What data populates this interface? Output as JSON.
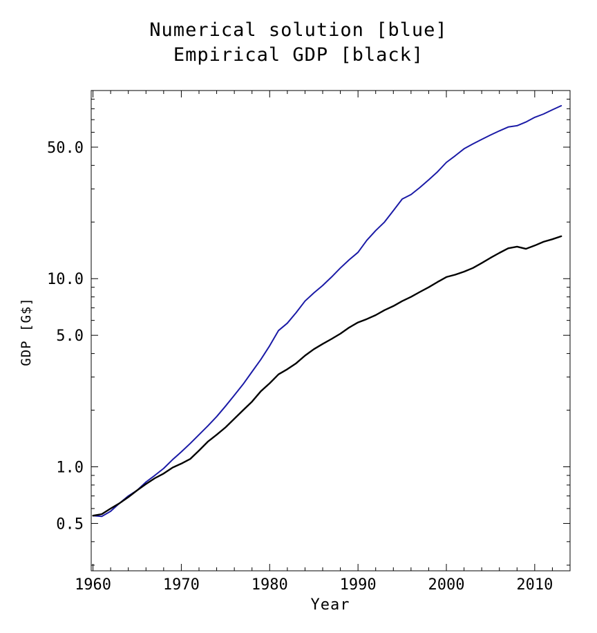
{
  "chart_data": {
    "type": "line",
    "title_lines": [
      "Numerical solution [blue]",
      "Empirical GDP [black]"
    ],
    "xlabel": "Year",
    "ylabel": "GDP [G$]",
    "xlim": [
      1959.8,
      2014.0
    ],
    "ylim": [
      0.28,
      100
    ],
    "y_scale": "log",
    "grid": false,
    "x_ticks": [
      1960,
      1970,
      1980,
      1990,
      2000,
      2010
    ],
    "x_tick_labels": [
      "1960",
      "1970",
      "1980",
      "1990",
      "2000",
      "2010"
    ],
    "y_ticks": [
      0.5,
      1.0,
      5.0,
      10.0,
      50.0
    ],
    "y_tick_labels": [
      "0.5",
      "1.0",
      "5.0",
      "10.0",
      "50.0"
    ],
    "colors": {
      "numerical": "#1a1aa6",
      "empirical": "#000000"
    },
    "series": [
      {
        "key": "numerical",
        "color": "#1a1aa6",
        "points": [
          [
            1960,
            0.55
          ],
          [
            1961,
            0.545
          ],
          [
            1962,
            0.58
          ],
          [
            1963,
            0.64
          ],
          [
            1964,
            0.7
          ],
          [
            1965,
            0.75
          ],
          [
            1966,
            0.83
          ],
          [
            1967,
            0.9
          ],
          [
            1968,
            0.98
          ],
          [
            1969,
            1.09
          ],
          [
            1970,
            1.2
          ],
          [
            1971,
            1.33
          ],
          [
            1972,
            1.48
          ],
          [
            1973,
            1.65
          ],
          [
            1974,
            1.85
          ],
          [
            1975,
            2.1
          ],
          [
            1976,
            2.4
          ],
          [
            1977,
            2.75
          ],
          [
            1978,
            3.2
          ],
          [
            1979,
            3.72
          ],
          [
            1980,
            4.4
          ],
          [
            1981,
            5.3
          ],
          [
            1982,
            5.8
          ],
          [
            1983,
            6.6
          ],
          [
            1984,
            7.6
          ],
          [
            1985,
            8.4
          ],
          [
            1986,
            9.2
          ],
          [
            1987,
            10.2
          ],
          [
            1988,
            11.4
          ],
          [
            1989,
            12.6
          ],
          [
            1990,
            13.8
          ],
          [
            1991,
            16.0
          ],
          [
            1992,
            18.0
          ],
          [
            1993,
            20.0
          ],
          [
            1994,
            23.0
          ],
          [
            1995,
            26.5
          ],
          [
            1996,
            28.0
          ],
          [
            1997,
            30.5
          ],
          [
            1998,
            33.5
          ],
          [
            1999,
            37.0
          ],
          [
            2000,
            41.5
          ],
          [
            2001,
            45.0
          ],
          [
            2002,
            49.0
          ],
          [
            2003,
            52.0
          ],
          [
            2004,
            55.0
          ],
          [
            2005,
            58.0
          ],
          [
            2006,
            61.0
          ],
          [
            2007,
            64.0
          ],
          [
            2008,
            65.0
          ],
          [
            2009,
            68.0
          ],
          [
            2010,
            72.0
          ],
          [
            2011,
            75.0
          ],
          [
            2012,
            79.0
          ],
          [
            2013,
            83.0
          ]
        ]
      },
      {
        "key": "empirical",
        "color": "#000000",
        "points": [
          [
            1960,
            0.55
          ],
          [
            1961,
            0.56
          ],
          [
            1962,
            0.6
          ],
          [
            1963,
            0.64
          ],
          [
            1964,
            0.69
          ],
          [
            1965,
            0.75
          ],
          [
            1966,
            0.81
          ],
          [
            1967,
            0.87
          ],
          [
            1968,
            0.92
          ],
          [
            1969,
            0.99
          ],
          [
            1970,
            1.04
          ],
          [
            1971,
            1.1
          ],
          [
            1972,
            1.22
          ],
          [
            1973,
            1.36
          ],
          [
            1974,
            1.48
          ],
          [
            1975,
            1.62
          ],
          [
            1976,
            1.8
          ],
          [
            1977,
            2.0
          ],
          [
            1978,
            2.22
          ],
          [
            1979,
            2.52
          ],
          [
            1980,
            2.78
          ],
          [
            1981,
            3.1
          ],
          [
            1982,
            3.3
          ],
          [
            1983,
            3.55
          ],
          [
            1984,
            3.9
          ],
          [
            1985,
            4.22
          ],
          [
            1986,
            4.5
          ],
          [
            1987,
            4.78
          ],
          [
            1988,
            5.1
          ],
          [
            1989,
            5.5
          ],
          [
            1990,
            5.85
          ],
          [
            1991,
            6.1
          ],
          [
            1992,
            6.4
          ],
          [
            1993,
            6.8
          ],
          [
            1994,
            7.15
          ],
          [
            1995,
            7.6
          ],
          [
            1996,
            8.0
          ],
          [
            1997,
            8.5
          ],
          [
            1998,
            9.0
          ],
          [
            1999,
            9.6
          ],
          [
            2000,
            10.2
          ],
          [
            2001,
            10.5
          ],
          [
            2002,
            10.9
          ],
          [
            2003,
            11.4
          ],
          [
            2004,
            12.1
          ],
          [
            2005,
            12.9
          ],
          [
            2006,
            13.7
          ],
          [
            2007,
            14.5
          ],
          [
            2008,
            14.8
          ],
          [
            2009,
            14.4
          ],
          [
            2010,
            15.0
          ],
          [
            2011,
            15.7
          ],
          [
            2012,
            16.2
          ],
          [
            2013,
            16.8
          ]
        ]
      }
    ]
  }
}
